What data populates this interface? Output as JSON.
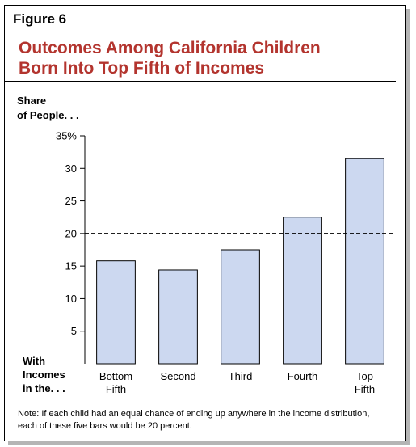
{
  "figure_label": "Figure 6",
  "title_lines": [
    "Outcomes Among California Children",
    "Born Into Top Fifth of Incomes"
  ],
  "note": "Note: If each child had an equal chance of ending up anywhere in the income distribution, each of these five bars would be 20 percent.",
  "chart_data": {
    "type": "bar",
    "ylabel_lines": [
      "Share",
      "of People. . ."
    ],
    "xlabel_lines": [
      "With",
      "Incomes",
      "in the. . ."
    ],
    "categories": [
      [
        "Bottom",
        "Fifth"
      ],
      [
        "Second"
      ],
      [
        "Third"
      ],
      [
        "Fourth"
      ],
      [
        "Top",
        "Fifth"
      ]
    ],
    "values": [
      15.8,
      14.4,
      17.5,
      22.5,
      31.5
    ],
    "ylim": [
      0,
      35
    ],
    "y_ticks": [
      5,
      10,
      15,
      20,
      25,
      30,
      35
    ],
    "y_tick_labels": [
      "5",
      "10",
      "15",
      "20",
      "25",
      "30",
      "35%"
    ],
    "reference_line": 20,
    "bar_color": "#ccd8f0",
    "bar_stroke": "#000000",
    "grid": false
  }
}
